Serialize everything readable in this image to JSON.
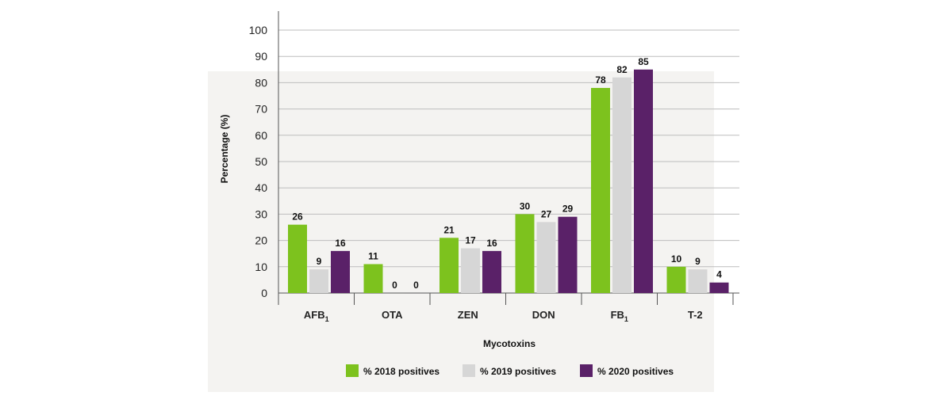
{
  "chart_data": {
    "type": "bar",
    "categories": [
      "AFB1",
      "OTA",
      "ZEN",
      "DON",
      "FB1",
      "T-2"
    ],
    "category_labels": [
      {
        "main": "AFB",
        "sub": "1"
      },
      {
        "main": "OTA",
        "sub": ""
      },
      {
        "main": "ZEN",
        "sub": ""
      },
      {
        "main": "DON",
        "sub": ""
      },
      {
        "main": "FB",
        "sub": "1"
      },
      {
        "main": "T-2",
        "sub": ""
      }
    ],
    "series": [
      {
        "name": "% 2018 positives",
        "color": "#7dc21e",
        "values": [
          26,
          11,
          21,
          30,
          78,
          10
        ]
      },
      {
        "name": "% 2019 positives",
        "color": "#d6d6d6",
        "values": [
          9,
          0,
          17,
          27,
          82,
          9
        ]
      },
      {
        "name": "% 2020 positives",
        "color": "#5a2168",
        "values": [
          16,
          0,
          16,
          29,
          85,
          4
        ]
      }
    ],
    "xlabel": "Mycotoxins",
    "ylabel": "Percentage (%)",
    "ylim": [
      0,
      100
    ],
    "yticks": [
      0,
      10,
      20,
      30,
      40,
      50,
      60,
      70,
      80,
      90,
      100
    ],
    "grid": true,
    "legend": "bottom"
  }
}
